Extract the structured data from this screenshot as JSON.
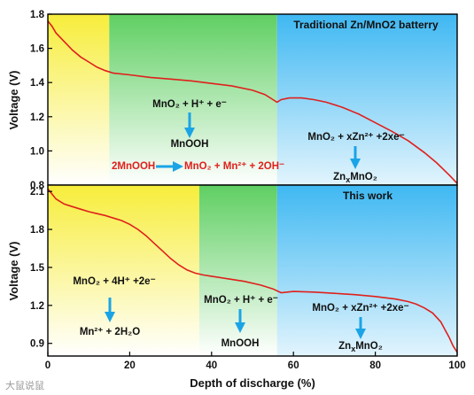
{
  "chart_data": [
    {
      "type": "line",
      "title": "Traditional Zn/MnO2 batterry",
      "xlabel": "",
      "ylabel": "Voltage (V)",
      "xlim": [
        0,
        100
      ],
      "ylim": [
        0.8,
        1.8
      ],
      "y_ticks": [
        "0.8",
        "1.0",
        "1.2",
        "1.4",
        "1.6",
        "1.8"
      ],
      "x_ticks": [],
      "series": [
        {
          "color": "#e0201c",
          "x": [
            0,
            1,
            2,
            4,
            6,
            8,
            10,
            12,
            14,
            16,
            20,
            25,
            30,
            35,
            40,
            45,
            50,
            53,
            55,
            56,
            57,
            59,
            62,
            65,
            68,
            72,
            76,
            80,
            84,
            88,
            92,
            95,
            98,
            100
          ],
          "y": [
            1.76,
            1.73,
            1.69,
            1.64,
            1.59,
            1.55,
            1.52,
            1.49,
            1.47,
            1.455,
            1.445,
            1.43,
            1.42,
            1.41,
            1.395,
            1.38,
            1.355,
            1.33,
            1.3,
            1.285,
            1.3,
            1.31,
            1.31,
            1.3,
            1.285,
            1.255,
            1.215,
            1.165,
            1.115,
            1.06,
            0.99,
            0.93,
            0.86,
            0.81
          ]
        }
      ],
      "regions": [
        {
          "from": 0,
          "to": 15,
          "color": "#f7ed3b"
        },
        {
          "from": 15,
          "to": 56,
          "color": "#5fcf62"
        },
        {
          "from": 56,
          "to": 100,
          "color": "#3fb8f2"
        }
      ],
      "annotations": {
        "a1": {
          "top": "MnO₂ + H⁺ + e⁻",
          "bottom": "MnOOH"
        },
        "a2": {
          "top": "MnO₂ + xZn²⁺ +2xe⁻",
          "bottom_main": "Zn",
          "bottom_sub": "x",
          "bottom_rest": "MnO₂"
        },
        "a3": {
          "left": "2MnOOH",
          "right": "MnO₂ + Mn²⁺ + 2OH⁻"
        }
      }
    },
    {
      "type": "line",
      "title": "This work",
      "xlabel": "Depth of discharge (%)",
      "ylabel": "Voltage (V)",
      "xlim": [
        0,
        100
      ],
      "ylim": [
        0.8,
        2.15
      ],
      "y_ticks": [
        "0.9",
        "1.2",
        "1.5",
        "1.8",
        "2.1"
      ],
      "x_ticks": [
        "0",
        "20",
        "40",
        "60",
        "80",
        "100"
      ],
      "series": [
        {
          "color": "#e0201c",
          "x": [
            0,
            1,
            2,
            4,
            6,
            8,
            10,
            12,
            14,
            16,
            18,
            20,
            22,
            24,
            26,
            28,
            30,
            32,
            34,
            36,
            38,
            40,
            44,
            48,
            52,
            55,
            57,
            60,
            65,
            70,
            75,
            80,
            85,
            88,
            90,
            92,
            94,
            96,
            97,
            98,
            99,
            100
          ],
          "y": [
            2.12,
            2.08,
            2.04,
            2.0,
            1.98,
            1.96,
            1.94,
            1.925,
            1.91,
            1.89,
            1.87,
            1.84,
            1.8,
            1.75,
            1.69,
            1.63,
            1.57,
            1.52,
            1.48,
            1.455,
            1.44,
            1.43,
            1.41,
            1.39,
            1.36,
            1.33,
            1.3,
            1.31,
            1.305,
            1.295,
            1.285,
            1.27,
            1.25,
            1.23,
            1.21,
            1.18,
            1.14,
            1.07,
            1.01,
            0.95,
            0.88,
            0.83
          ]
        }
      ],
      "regions": [
        {
          "from": 0,
          "to": 37,
          "color": "#f7ed3b"
        },
        {
          "from": 37,
          "to": 56,
          "color": "#5fcf62"
        },
        {
          "from": 56,
          "to": 100,
          "color": "#3fb8f2"
        }
      ],
      "annotations": {
        "b1": {
          "top": "MnO₂ + 4H⁺ +2e⁻",
          "bottom": "Mn²⁺ + 2H₂O"
        },
        "b2": {
          "top": "MnO₂ + H⁺ + e⁻",
          "bottom": "MnOOH"
        },
        "b3": {
          "top": "MnO₂ + xZn²⁺ +2xe⁻",
          "bottom_main": "Zn",
          "bottom_sub": "x",
          "bottom_rest": "MnO₂"
        }
      }
    }
  ],
  "watermark": "大鼠说鼠",
  "colors": {
    "line": "#e0201c",
    "arrow": "#1aa4e6",
    "frame": "#000000"
  }
}
